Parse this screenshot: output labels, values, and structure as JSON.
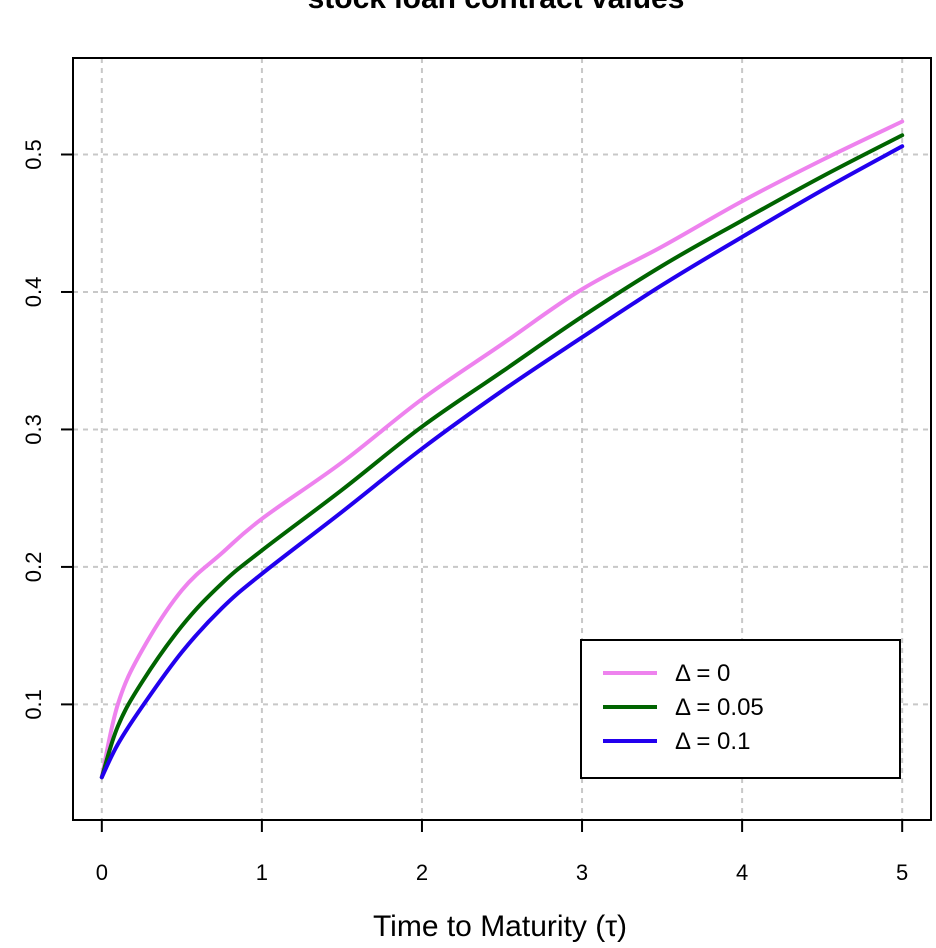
{
  "chart_data": {
    "type": "line",
    "title": "stock loan contract values",
    "xlabel": "Time to Maturity (τ)",
    "ylabel": "",
    "xlim": [
      -0.18,
      5.18
    ],
    "ylim": [
      0.0159,
      0.5702
    ],
    "x_ticks": [
      0,
      1,
      2,
      3,
      4,
      5
    ],
    "x_tick_labels": [
      "0",
      "1",
      "2",
      "3",
      "4",
      "5"
    ],
    "y_ticks": [
      0.1,
      0.2,
      0.3,
      0.4,
      0.5
    ],
    "y_tick_labels": [
      "0.1",
      "0.2",
      "0.3",
      "0.4",
      "0.5"
    ],
    "grid": true,
    "legend_position": "bottom-right",
    "x": [
      0,
      0.1,
      0.25,
      0.5,
      0.75,
      1,
      1.5,
      2,
      2.5,
      3,
      3.5,
      4,
      4.5,
      5
    ],
    "series": [
      {
        "name": "Δ = 0",
        "color": "#ee82ee",
        "values": [
          0.047,
          0.1,
          0.139,
          0.183,
          0.21,
          0.235,
          0.276,
          0.322,
          0.362,
          0.402,
          0.433,
          0.466,
          0.496,
          0.524
        ]
      },
      {
        "name": "Δ = 0.05",
        "color": "#006400",
        "values": [
          0.047,
          0.084,
          0.116,
          0.157,
          0.188,
          0.212,
          0.256,
          0.302,
          0.342,
          0.382,
          0.419,
          0.452,
          0.484,
          0.514
        ]
      },
      {
        "name": "Δ = 0.1",
        "color": "#2200ee",
        "values": [
          0.047,
          0.071,
          0.098,
          0.138,
          0.17,
          0.195,
          0.24,
          0.286,
          0.328,
          0.367,
          0.405,
          0.44,
          0.474,
          0.506
        ]
      }
    ]
  }
}
